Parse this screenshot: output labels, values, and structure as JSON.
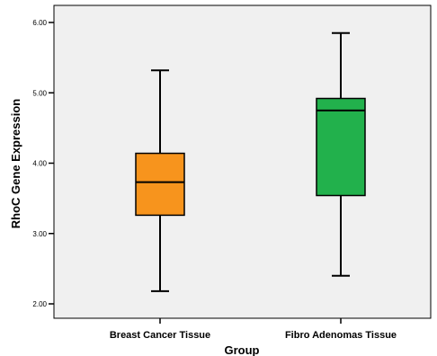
{
  "chart_data": {
    "type": "box",
    "title": "",
    "xlabel": "Group",
    "ylabel": "RhoC Gene Expression",
    "ylim": [
      2.0,
      6.0
    ],
    "yticks": [
      "2.00",
      "3.00",
      "4.00",
      "5.00",
      "6.00"
    ],
    "categories": [
      "Breast Cancer Tissue",
      "Fibro Adenomas Tissue"
    ],
    "boxes": [
      {
        "category": "Breast Cancer Tissue",
        "min": 2.18,
        "q1": 3.26,
        "median": 3.73,
        "q3": 4.14,
        "max": 5.32,
        "color": "#f7941d"
      },
      {
        "category": "Fibro Adenomas Tissue",
        "min": 2.4,
        "q1": 3.54,
        "median": 4.75,
        "q3": 4.92,
        "max": 5.85,
        "color": "#22b14c"
      }
    ],
    "plot_background": "#f0f0f0",
    "grid": false,
    "legend": "none"
  }
}
